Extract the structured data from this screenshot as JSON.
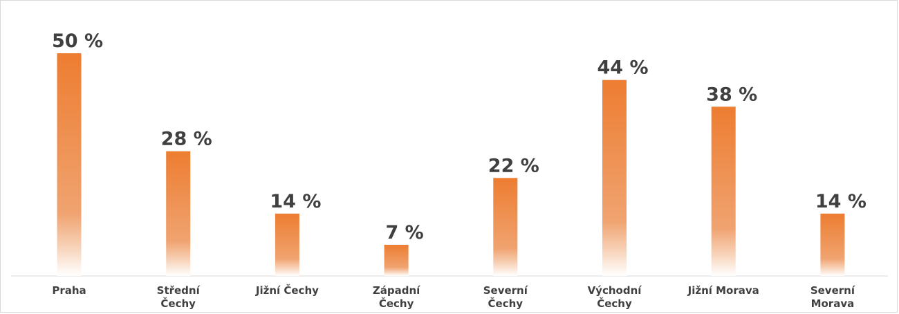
{
  "chart_data": {
    "type": "bar",
    "categories": [
      [
        "Praha"
      ],
      [
        "Střední",
        "Čechy"
      ],
      [
        "Jižní Čechy"
      ],
      [
        "Západní",
        "Čechy"
      ],
      [
        "Severní",
        "Čechy"
      ],
      [
        "Východní",
        "Čechy"
      ],
      [
        "Jižní Morava"
      ],
      [
        "Severní",
        "Morava"
      ]
    ],
    "values": [
      50,
      28,
      14,
      7,
      22,
      44,
      38,
      14
    ],
    "value_labels": [
      "50 %",
      "28 %",
      "14 %",
      "7 %",
      "22 %",
      "44 %",
      "38 %",
      "14 %"
    ],
    "unit": "%",
    "ylim": [
      0,
      50
    ],
    "grid": false,
    "legend": "none",
    "bar_color": "#ed7d31",
    "bar_fill": "gradient-fade-to-white"
  }
}
